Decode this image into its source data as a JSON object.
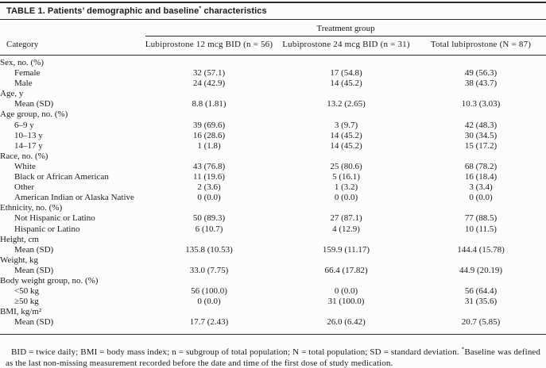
{
  "table": {
    "title": {
      "label": "TABLE 1.",
      "pre": "Patients’ demographic and baseline",
      "sup": "*",
      "post": " characteristics"
    },
    "spanner": "Treatment group",
    "category_header": "Category",
    "columns": [
      "Lubiprostone 12 mcg BID (n = 56)",
      "Lubiprostone 24 mcg BID (n = 31)",
      "Total lubiprostone (N = 87)"
    ],
    "rows": [
      {
        "label": "Sex, no. (%)",
        "indent": 0,
        "values": [
          "",
          "",
          ""
        ]
      },
      {
        "label": "Female",
        "indent": 1,
        "values": [
          "32 (57.1)",
          "17 (54.8)",
          "49 (56.3)"
        ]
      },
      {
        "label": "Male",
        "indent": 1,
        "values": [
          "24 (42.9)",
          "14 (45.2)",
          "38 (43.7)"
        ]
      },
      {
        "label": "Age, y",
        "indent": 0,
        "values": [
          "",
          "",
          ""
        ]
      },
      {
        "label": "Mean (SD)",
        "indent": 1,
        "values": [
          "8.8 (1.81)",
          "13.2 (2.65)",
          "10.3 (3.03)"
        ]
      },
      {
        "label": "Age group, no. (%)",
        "indent": 0,
        "values": [
          "",
          "",
          ""
        ]
      },
      {
        "label": "6–9 y",
        "indent": 1,
        "values": [
          "39 (69.6)",
          "3 (9.7)",
          "42 (48.3)"
        ]
      },
      {
        "label": "10–13 y",
        "indent": 1,
        "values": [
          "16 (28.6)",
          "14 (45.2)",
          "30 (34.5)"
        ]
      },
      {
        "label": "14–17 y",
        "indent": 1,
        "values": [
          "1 (1.8)",
          "14 (45.2)",
          "15 (17.2)"
        ]
      },
      {
        "label": "Race, no. (%)",
        "indent": 0,
        "values": [
          "",
          "",
          ""
        ]
      },
      {
        "label": "White",
        "indent": 1,
        "values": [
          "43 (76.8)",
          "25 (80.6)",
          "68 (78.2)"
        ]
      },
      {
        "label": "Black or African American",
        "indent": 1,
        "values": [
          "11 (19.6)",
          "5 (16.1)",
          "16 (18.4)"
        ]
      },
      {
        "label": "Other",
        "indent": 1,
        "values": [
          "2 (3.6)",
          "1 (3.2)",
          "3 (3.4)"
        ]
      },
      {
        "label": "American Indian or Alaska Native",
        "indent": 1,
        "values": [
          "0 (0.0)",
          "0 (0.0)",
          "0 (0.0)"
        ]
      },
      {
        "label": "Ethnicity, no. (%)",
        "indent": 0,
        "values": [
          "",
          "",
          ""
        ]
      },
      {
        "label": "Not Hispanic or Latino",
        "indent": 1,
        "values": [
          "50 (89.3)",
          "27 (87.1)",
          "77 (88.5)"
        ]
      },
      {
        "label": "Hispanic or Latino",
        "indent": 1,
        "values": [
          "6 (10.7)",
          "4 (12.9)",
          "10 (11.5)"
        ]
      },
      {
        "label": "Height, cm",
        "indent": 0,
        "values": [
          "",
          "",
          ""
        ]
      },
      {
        "label": "Mean (SD)",
        "indent": 1,
        "values": [
          "135.8 (10.53)",
          "159.9 (11.17)",
          "144.4 (15.78)"
        ]
      },
      {
        "label": "Weight, kg",
        "indent": 0,
        "values": [
          "",
          "",
          ""
        ]
      },
      {
        "label": "Mean (SD)",
        "indent": 1,
        "values": [
          "33.0 (7.75)",
          "66.4 (17.82)",
          "44.9 (20.19)"
        ]
      },
      {
        "label": "Body weight group, no. (%)",
        "indent": 0,
        "values": [
          "",
          "",
          ""
        ]
      },
      {
        "label": "<50 kg",
        "indent": 1,
        "values": [
          "56 (100.0)",
          "0 (0.0)",
          "56 (64.4)"
        ]
      },
      {
        "label": "≥50 kg",
        "indent": 1,
        "values": [
          "0 (0.0)",
          "31 (100.0)",
          "31 (35.6)"
        ]
      },
      {
        "label": "BMI, kg/m²",
        "indent": 0,
        "values": [
          "",
          "",
          ""
        ]
      },
      {
        "label": "Mean (SD)",
        "indent": 1,
        "values": [
          "17.7 (2.43)",
          "26.0 (6.42)",
          "20.7 (5.85)"
        ]
      }
    ],
    "footnote": {
      "part1": "BID = twice daily; BMI = body mass index; n = subgroup of total population; N = total population; SD = standard deviation. ",
      "sup": "*",
      "part2": "Baseline was defined as the last non-missing measurement recorded before the date and time of the first dose of study medication."
    }
  }
}
